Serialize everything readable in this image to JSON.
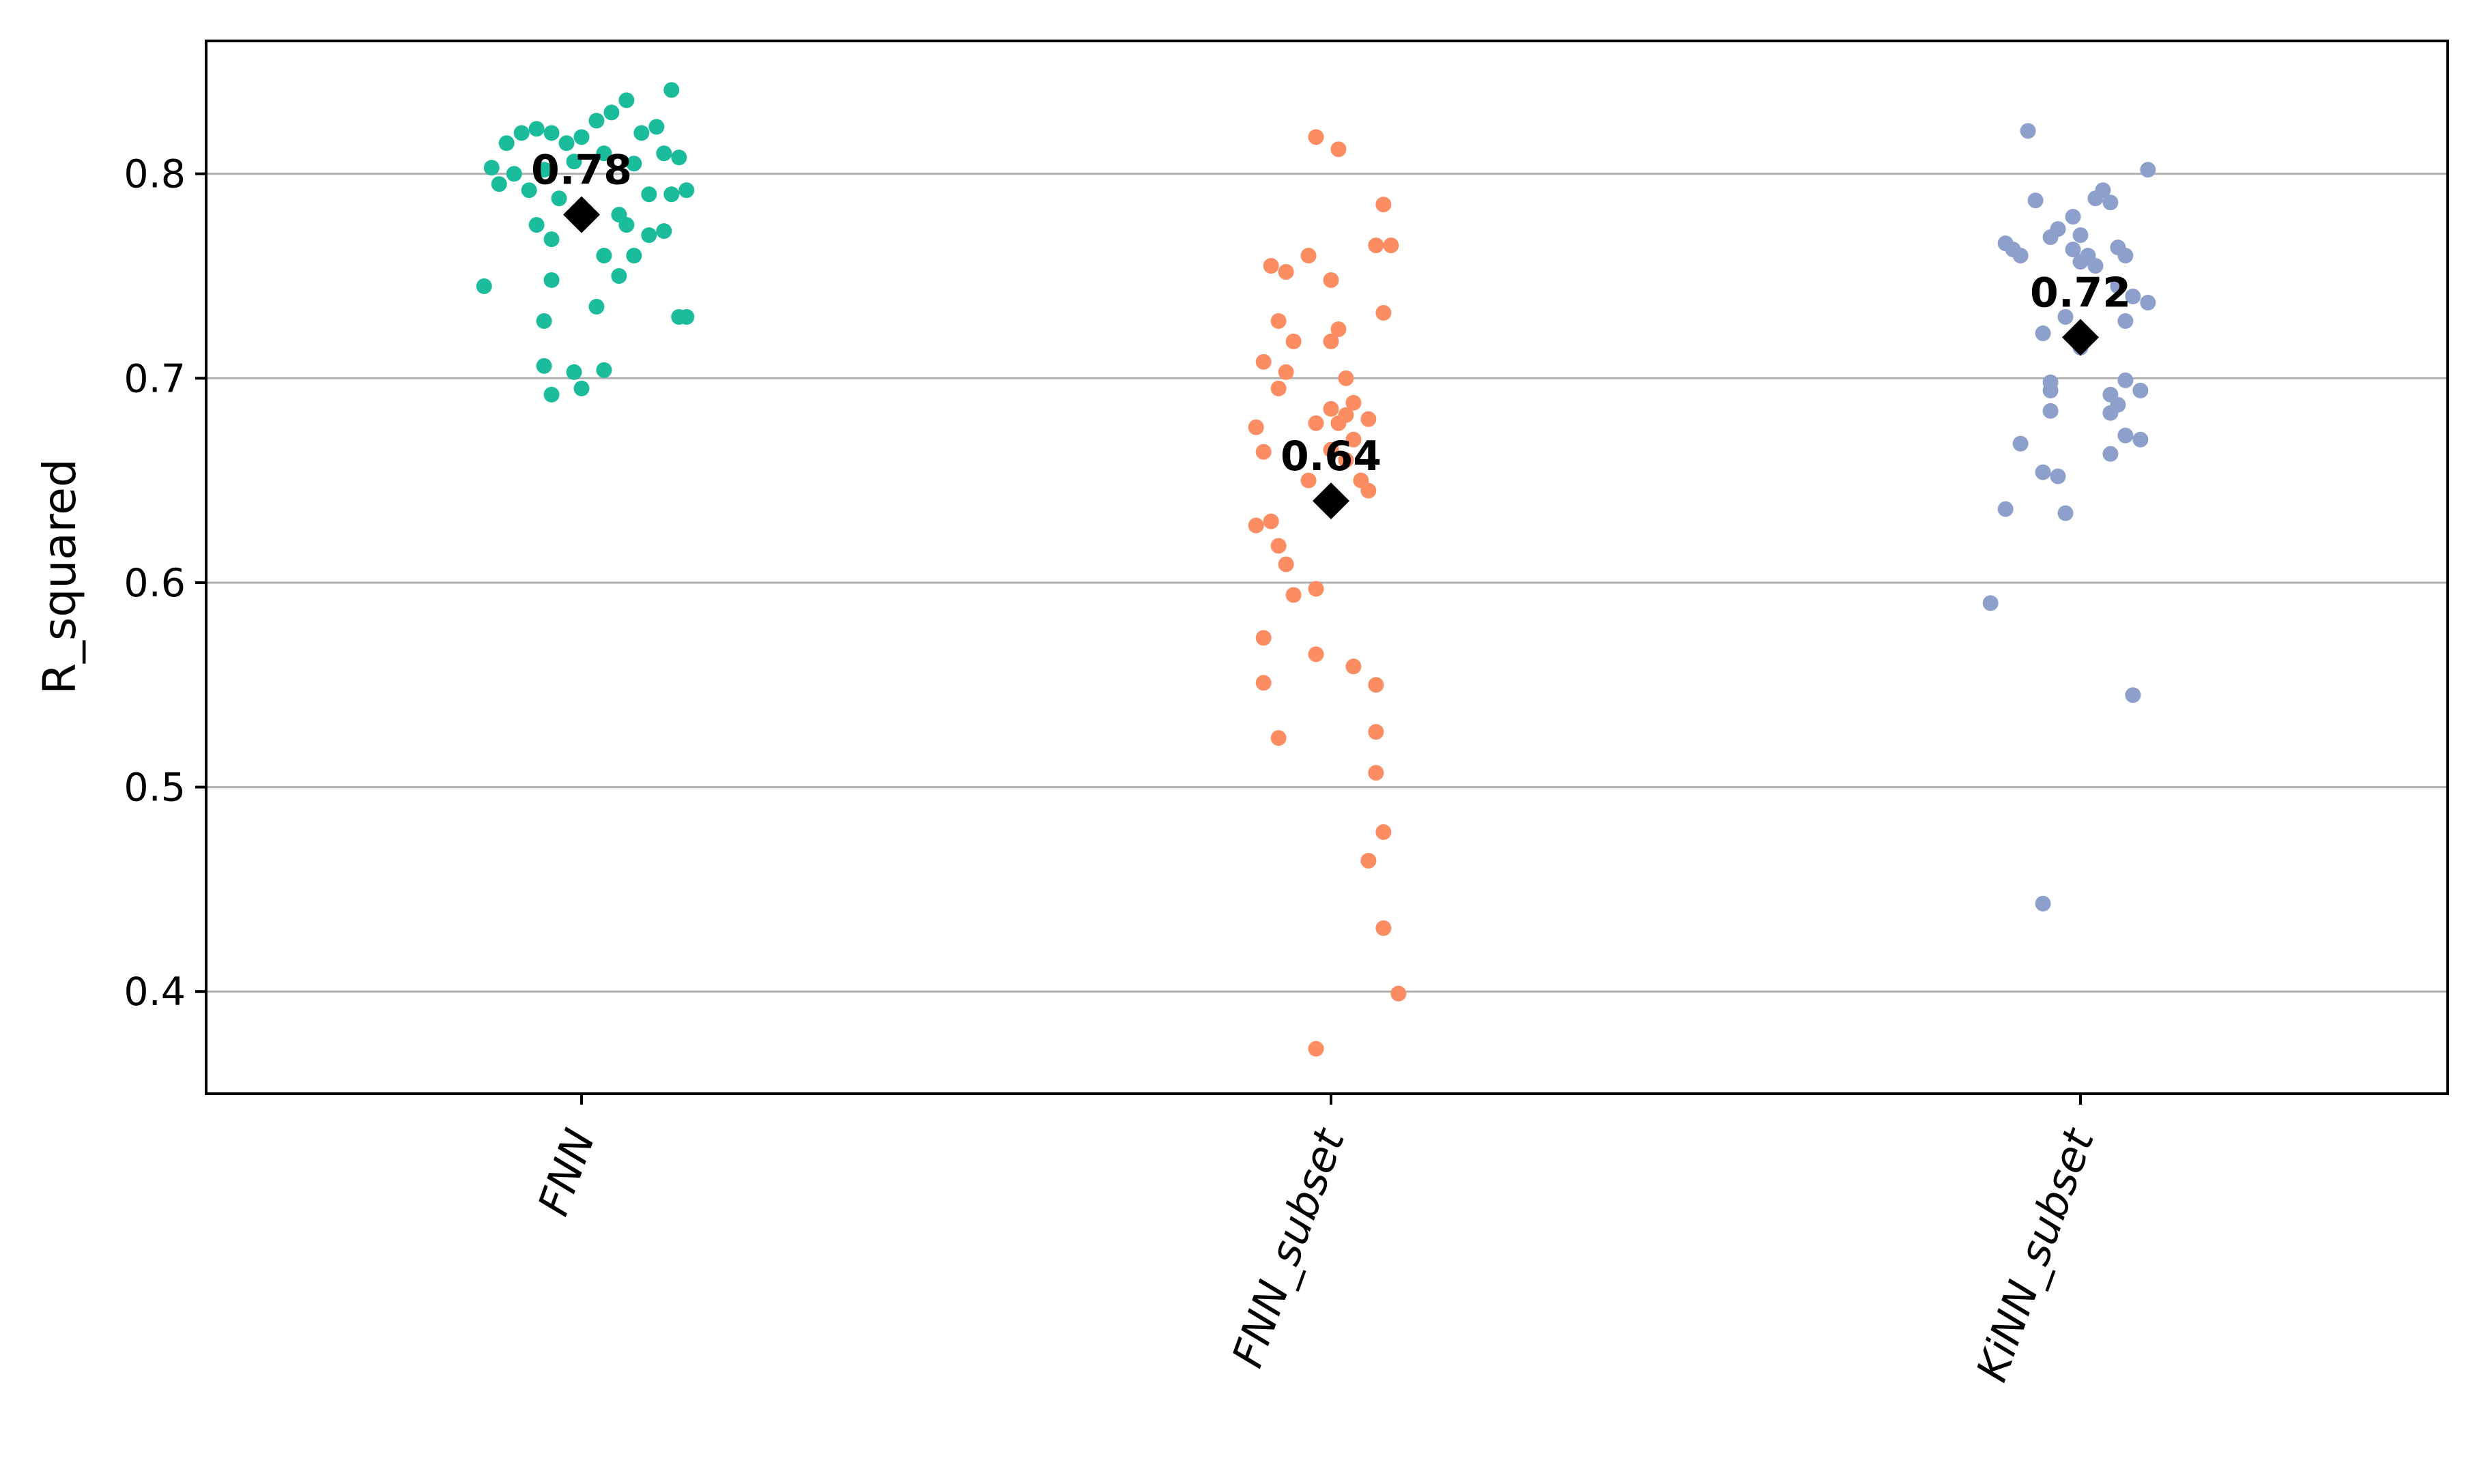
{
  "chart_data": {
    "type": "scatter",
    "title": "",
    "xlabel": "",
    "ylabel": "R_squared",
    "ylim": [
      0.35,
      0.865
    ],
    "yticks": [
      0.4,
      0.5,
      0.6,
      0.7,
      0.8
    ],
    "ytick_labels": [
      "0.4",
      "0.5",
      "0.6",
      "0.7",
      "0.8"
    ],
    "grid": "horizontal",
    "legend": "none",
    "categories": [
      "FNN",
      "FNN_subset",
      "KiNN_subset"
    ],
    "mean_marker": "black-diamond",
    "series": [
      {
        "category": "FNN",
        "color": "#1abc9c",
        "mean": 0.78,
        "mean_label": "0.78",
        "points": [
          {
            "dx": -0.1,
            "y": 0.815
          },
          {
            "dx": -0.08,
            "y": 0.82
          },
          {
            "dx": -0.06,
            "y": 0.822
          },
          {
            "dx": -0.04,
            "y": 0.82
          },
          {
            "dx": -0.02,
            "y": 0.815
          },
          {
            "dx": 0.0,
            "y": 0.818
          },
          {
            "dx": 0.02,
            "y": 0.826
          },
          {
            "dx": 0.04,
            "y": 0.83
          },
          {
            "dx": 0.06,
            "y": 0.836
          },
          {
            "dx": 0.08,
            "y": 0.82
          },
          {
            "dx": 0.1,
            "y": 0.823
          },
          {
            "dx": 0.12,
            "y": 0.841
          },
          {
            "dx": -0.12,
            "y": 0.803
          },
          {
            "dx": -0.09,
            "y": 0.8
          },
          {
            "dx": -0.05,
            "y": 0.802
          },
          {
            "dx": -0.01,
            "y": 0.806
          },
          {
            "dx": 0.03,
            "y": 0.81
          },
          {
            "dx": 0.07,
            "y": 0.805
          },
          {
            "dx": 0.11,
            "y": 0.81
          },
          {
            "dx": 0.13,
            "y": 0.808
          },
          {
            "dx": -0.11,
            "y": 0.795
          },
          {
            "dx": -0.07,
            "y": 0.792
          },
          {
            "dx": -0.03,
            "y": 0.788
          },
          {
            "dx": 0.09,
            "y": 0.79
          },
          {
            "dx": 0.12,
            "y": 0.79
          },
          {
            "dx": 0.14,
            "y": 0.792
          },
          {
            "dx": -0.06,
            "y": 0.775
          },
          {
            "dx": -0.04,
            "y": 0.768
          },
          {
            "dx": 0.05,
            "y": 0.78
          },
          {
            "dx": 0.06,
            "y": 0.775
          },
          {
            "dx": 0.09,
            "y": 0.77
          },
          {
            "dx": 0.11,
            "y": 0.772
          },
          {
            "dx": 0.03,
            "y": 0.76
          },
          {
            "dx": 0.07,
            "y": 0.76
          },
          {
            "dx": 0.05,
            "y": 0.75
          },
          {
            "dx": -0.13,
            "y": 0.745
          },
          {
            "dx": -0.04,
            "y": 0.748
          },
          {
            "dx": 0.02,
            "y": 0.735
          },
          {
            "dx": -0.05,
            "y": 0.728
          },
          {
            "dx": 0.13,
            "y": 0.73
          },
          {
            "dx": 0.14,
            "y": 0.73
          },
          {
            "dx": -0.05,
            "y": 0.706
          },
          {
            "dx": -0.01,
            "y": 0.703
          },
          {
            "dx": 0.03,
            "y": 0.704
          },
          {
            "dx": 0.0,
            "y": 0.695
          },
          {
            "dx": -0.04,
            "y": 0.692
          }
        ]
      },
      {
        "category": "FNN_subset",
        "color": "#fc8d62",
        "mean": 0.64,
        "mean_label": "0.64",
        "points": [
          {
            "dx": -0.02,
            "y": 0.818
          },
          {
            "dx": 0.01,
            "y": 0.812
          },
          {
            "dx": 0.07,
            "y": 0.785
          },
          {
            "dx": 0.06,
            "y": 0.765
          },
          {
            "dx": 0.08,
            "y": 0.765
          },
          {
            "dx": -0.03,
            "y": 0.76
          },
          {
            "dx": -0.08,
            "y": 0.755
          },
          {
            "dx": -0.06,
            "y": 0.752
          },
          {
            "dx": 0.0,
            "y": 0.748
          },
          {
            "dx": 0.07,
            "y": 0.732
          },
          {
            "dx": -0.07,
            "y": 0.728
          },
          {
            "dx": 0.01,
            "y": 0.724
          },
          {
            "dx": -0.05,
            "y": 0.718
          },
          {
            "dx": 0.0,
            "y": 0.718
          },
          {
            "dx": -0.09,
            "y": 0.708
          },
          {
            "dx": -0.06,
            "y": 0.703
          },
          {
            "dx": 0.02,
            "y": 0.7
          },
          {
            "dx": -0.07,
            "y": 0.695
          },
          {
            "dx": 0.03,
            "y": 0.688
          },
          {
            "dx": 0.0,
            "y": 0.685
          },
          {
            "dx": 0.02,
            "y": 0.682
          },
          {
            "dx": 0.05,
            "y": 0.68
          },
          {
            "dx": -0.02,
            "y": 0.678
          },
          {
            "dx": 0.01,
            "y": 0.678
          },
          {
            "dx": -0.1,
            "y": 0.676
          },
          {
            "dx": 0.03,
            "y": 0.67
          },
          {
            "dx": -0.09,
            "y": 0.664
          },
          {
            "dx": 0.0,
            "y": 0.665
          },
          {
            "dx": 0.02,
            "y": 0.66
          },
          {
            "dx": -0.03,
            "y": 0.65
          },
          {
            "dx": 0.04,
            "y": 0.65
          },
          {
            "dx": 0.05,
            "y": 0.645
          },
          {
            "dx": -0.08,
            "y": 0.63
          },
          {
            "dx": -0.1,
            "y": 0.628
          },
          {
            "dx": -0.07,
            "y": 0.618
          },
          {
            "dx": -0.06,
            "y": 0.609
          },
          {
            "dx": -0.02,
            "y": 0.597
          },
          {
            "dx": -0.05,
            "y": 0.594
          },
          {
            "dx": -0.09,
            "y": 0.573
          },
          {
            "dx": -0.02,
            "y": 0.565
          },
          {
            "dx": 0.03,
            "y": 0.559
          },
          {
            "dx": -0.09,
            "y": 0.551
          },
          {
            "dx": 0.06,
            "y": 0.55
          },
          {
            "dx": 0.06,
            "y": 0.527
          },
          {
            "dx": -0.07,
            "y": 0.524
          },
          {
            "dx": 0.06,
            "y": 0.507
          },
          {
            "dx": 0.07,
            "y": 0.478
          },
          {
            "dx": 0.05,
            "y": 0.464
          },
          {
            "dx": 0.07,
            "y": 0.431
          },
          {
            "dx": 0.09,
            "y": 0.399
          },
          {
            "dx": -0.02,
            "y": 0.372
          }
        ]
      },
      {
        "category": "KiNN_subset",
        "color": "#8da0cb",
        "mean": 0.72,
        "mean_label": "0.72",
        "points": [
          {
            "dx": -0.07,
            "y": 0.821
          },
          {
            "dx": 0.09,
            "y": 0.802
          },
          {
            "dx": 0.03,
            "y": 0.792
          },
          {
            "dx": 0.02,
            "y": 0.788
          },
          {
            "dx": -0.06,
            "y": 0.787
          },
          {
            "dx": 0.04,
            "y": 0.786
          },
          {
            "dx": -0.03,
            "y": 0.773
          },
          {
            "dx": -0.01,
            "y": 0.779
          },
          {
            "dx": -0.04,
            "y": 0.769
          },
          {
            "dx": 0.0,
            "y": 0.77
          },
          {
            "dx": -0.1,
            "y": 0.766
          },
          {
            "dx": -0.09,
            "y": 0.763
          },
          {
            "dx": -0.08,
            "y": 0.76
          },
          {
            "dx": -0.01,
            "y": 0.763
          },
          {
            "dx": 0.01,
            "y": 0.76
          },
          {
            "dx": 0.05,
            "y": 0.764
          },
          {
            "dx": 0.06,
            "y": 0.76
          },
          {
            "dx": 0.0,
            "y": 0.757
          },
          {
            "dx": 0.02,
            "y": 0.755
          },
          {
            "dx": 0.05,
            "y": 0.745
          },
          {
            "dx": 0.07,
            "y": 0.74
          },
          {
            "dx": 0.09,
            "y": 0.737
          },
          {
            "dx": -0.02,
            "y": 0.73
          },
          {
            "dx": 0.06,
            "y": 0.728
          },
          {
            "dx": -0.05,
            "y": 0.722
          },
          {
            "dx": 0.0,
            "y": 0.715
          },
          {
            "dx": -0.04,
            "y": 0.698
          },
          {
            "dx": -0.04,
            "y": 0.694
          },
          {
            "dx": 0.06,
            "y": 0.699
          },
          {
            "dx": 0.08,
            "y": 0.694
          },
          {
            "dx": 0.04,
            "y": 0.692
          },
          {
            "dx": 0.05,
            "y": 0.687
          },
          {
            "dx": -0.04,
            "y": 0.684
          },
          {
            "dx": 0.04,
            "y": 0.683
          },
          {
            "dx": 0.06,
            "y": 0.672
          },
          {
            "dx": 0.08,
            "y": 0.67
          },
          {
            "dx": -0.08,
            "y": 0.668
          },
          {
            "dx": 0.04,
            "y": 0.663
          },
          {
            "dx": -0.05,
            "y": 0.654
          },
          {
            "dx": -0.03,
            "y": 0.652
          },
          {
            "dx": -0.1,
            "y": 0.636
          },
          {
            "dx": -0.02,
            "y": 0.634
          },
          {
            "dx": -0.12,
            "y": 0.59
          },
          {
            "dx": 0.07,
            "y": 0.545
          },
          {
            "dx": -0.05,
            "y": 0.443
          }
        ]
      }
    ]
  }
}
